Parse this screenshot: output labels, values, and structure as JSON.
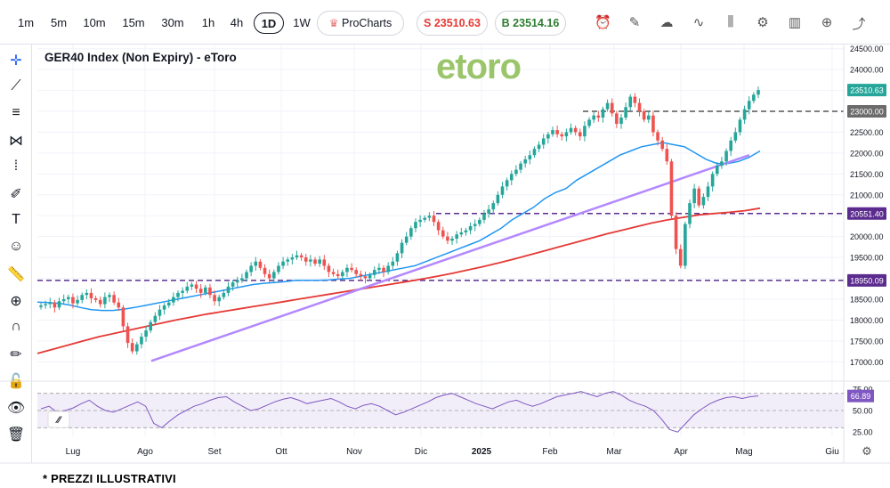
{
  "toolbar": {
    "timeframes": [
      "1m",
      "5m",
      "10m",
      "15m",
      "30m",
      "1h",
      "4h",
      "1D",
      "1W"
    ],
    "active_timeframe": "1D",
    "procharts_label": "ProCharts",
    "sell_label": "S 23510.63",
    "buy_label": "B 23514.16",
    "sell_color": "#e53935",
    "buy_color": "#2e7d32",
    "icons": [
      "alert-icon",
      "draw-icon",
      "cloud-icon",
      "line-icon",
      "candles-icon",
      "settings-icon",
      "bars-icon",
      "add-icon",
      "share-icon",
      "close-icon"
    ]
  },
  "sidebar": {
    "icons": [
      "crosshair-icon",
      "trendline-icon",
      "fib-icon",
      "pattern-icon",
      "projection-icon",
      "brush-icon",
      "text-icon",
      "emoji-icon",
      "ruler-icon",
      "zoom-icon",
      "magnet-icon",
      "lock-draw-icon",
      "lock-icon",
      "eye-icon",
      "trash-icon"
    ]
  },
  "header": {
    "title": "GER40 Index (Non Expiry) - eToro",
    "watermark": "etoro"
  },
  "footnote": "* PREZZI ILLUSTRATIVI",
  "chart_data": {
    "type": "candlestick",
    "title": "GER40 Index (Non Expiry) - eToro",
    "x_labels": [
      "Lug",
      "Ago",
      "Set",
      "Ott",
      "Nov",
      "Dic",
      "2025",
      "Feb",
      "Mar",
      "Apr",
      "Mag",
      "Giu"
    ],
    "y_ticks": [
      17000,
      17500,
      18000,
      18500,
      19000,
      19500,
      20000,
      20500,
      21000,
      21500,
      22000,
      22500,
      23000,
      23500,
      24000,
      24500
    ],
    "y_tick_labels": [
      "17000.00",
      "17500.00",
      "18000.00",
      "18500.00",
      "19000.00",
      "19500.00",
      "20000.00",
      "20500.00",
      "21000.00",
      "21500.00",
      "22000.00",
      "22500.00",
      "23000.00",
      "23500.00",
      "24000.00",
      "24500.00"
    ],
    "ylim": [
      16600,
      24600
    ],
    "price_labels": {
      "last": "23510.63",
      "resistance": "23000.00",
      "mid_level": "20551.40",
      "support": "18950.09"
    },
    "levels": [
      23000.0,
      20551.4,
      18950.09
    ],
    "level_colors": [
      "#555555",
      "#5b2c8e",
      "#5b2c8e"
    ],
    "up_color": "#26a69a",
    "down_color": "#ef5350",
    "ma_fast_color": "#2196f3",
    "ma_slow_color": "#e53935",
    "trendline_color": "#b388ff",
    "close_series": [
      18350,
      18380,
      18420,
      18300,
      18450,
      18500,
      18550,
      18400,
      18480,
      18600,
      18650,
      18520,
      18480,
      18380,
      18550,
      18600,
      18420,
      18300,
      17850,
      17450,
      17250,
      17420,
      17600,
      17750,
      17950,
      18100,
      18250,
      18350,
      18420,
      18550,
      18650,
      18700,
      18800,
      18850,
      18750,
      18650,
      18780,
      18600,
      18450,
      18550,
      18650,
      18800,
      18900,
      18950,
      19000,
      19150,
      19300,
      19400,
      19250,
      19100,
      19000,
      19150,
      19300,
      19400,
      19450,
      19500,
      19550,
      19500,
      19400,
      19450,
      19350,
      19450,
      19300,
      19150,
      19100,
      19050,
      19150,
      19250,
      19200,
      19100,
      19050,
      19000,
      19080,
      19200,
      19250,
      19150,
      19300,
      19400,
      19600,
      19850,
      20000,
      20200,
      20350,
      20400,
      20450,
      20500,
      20350,
      20150,
      20000,
      19900,
      19950,
      20050,
      20100,
      20150,
      20250,
      20300,
      20400,
      20550,
      20650,
      20800,
      21000,
      21200,
      21350,
      21500,
      21600,
      21750,
      21850,
      21950,
      22100,
      22200,
      22350,
      22450,
      22550,
      22450,
      22400,
      22500,
      22600,
      22500,
      22400,
      22650,
      22800,
      22900,
      22850,
      23050,
      23200,
      22950,
      22700,
      22850,
      23100,
      23350,
      23200,
      23000,
      22800,
      22900,
      22500,
      22300,
      22100,
      21800,
      20500,
      19700,
      19300,
      20300,
      20800,
      21150,
      20750,
      20950,
      21200,
      21500,
      21700,
      21800,
      22050,
      22300,
      22500,
      22800,
      23050,
      23250,
      23400,
      23510
    ],
    "ma_fast": [
      18430,
      18420,
      18400,
      18360,
      18300,
      18250,
      18230,
      18230,
      18260,
      18300,
      18350,
      18400,
      18450,
      18500,
      18550,
      18600,
      18650,
      18700,
      18750,
      18800,
      18850,
      18880,
      18900,
      18920,
      18950,
      18950,
      18950,
      18960,
      18980,
      19000,
      19050,
      19100,
      19150,
      19200,
      19250,
      19300,
      19400,
      19500,
      19600,
      19700,
      19800,
      19900,
      20050,
      20200,
      20400,
      20550,
      20700,
      20900,
      21050,
      21150,
      21350,
      21500,
      21650,
      21800,
      21950,
      22050,
      22150,
      22200,
      22250,
      22200,
      22150,
      22000,
      21850,
      21750,
      21750,
      21800,
      21900,
      22050
    ],
    "ma_slow": [
      17200,
      17300,
      17400,
      17500,
      17600,
      17680,
      17760,
      17840,
      17920,
      18000,
      18070,
      18140,
      18200,
      18260,
      18320,
      18380,
      18440,
      18500,
      18560,
      18620,
      18680,
      18740,
      18800,
      18860,
      18920,
      18980,
      19050,
      19120,
      19200,
      19280,
      19370,
      19460,
      19560,
      19660,
      19760,
      19860,
      19960,
      20060,
      20150,
      20240,
      20330,
      20400,
      20460,
      20520,
      20550,
      20580,
      20620,
      20680
    ],
    "trendline": {
      "from": [
        17020,
        "Ago"
      ],
      "to": [
        21950,
        "Mag"
      ]
    },
    "rsi": {
      "label": "66.89",
      "value": 66.89,
      "ticks": [
        "75.00",
        "50.00",
        "25.00"
      ],
      "levels": [
        70,
        50,
        30
      ],
      "color": "#7e57c2",
      "values": [
        52,
        55,
        48,
        50,
        53,
        58,
        62,
        55,
        50,
        48,
        52,
        56,
        60,
        55,
        35,
        30,
        38,
        45,
        50,
        55,
        58,
        62,
        65,
        66,
        60,
        55,
        50,
        52,
        56,
        60,
        63,
        65,
        62,
        58,
        60,
        62,
        64,
        60,
        55,
        52,
        56,
        58,
        55,
        50,
        45,
        48,
        52,
        56,
        60,
        65,
        68,
        70,
        66,
        62,
        58,
        55,
        52,
        56,
        60,
        62,
        58,
        55,
        58,
        62,
        66,
        68,
        70,
        72,
        69,
        66,
        70,
        72,
        68,
        62,
        58,
        55,
        50,
        40,
        28,
        25,
        35,
        45,
        52,
        58,
        62,
        65,
        66,
        64,
        66,
        67
      ]
    }
  }
}
